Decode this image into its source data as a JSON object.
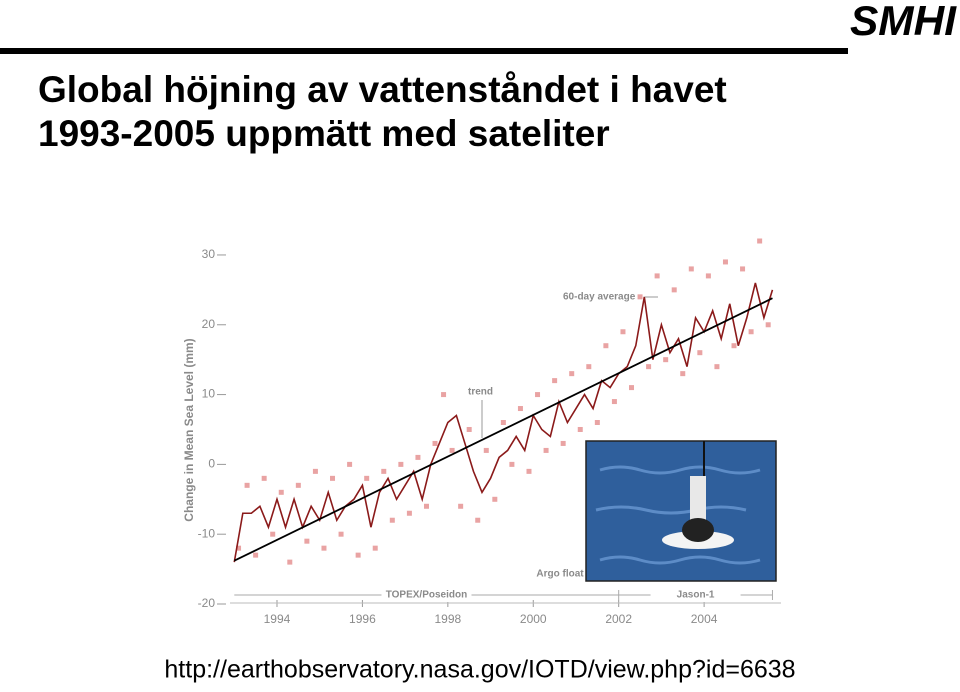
{
  "title": [
    "Global höjning av vattenståndet i havet",
    "1993-2005 uppmätt med sateliter"
  ],
  "logo": "SMHI",
  "source_url": "http://earthobservatory.nasa.gov/IOTD/view.php?id=6638",
  "chart_data": {
    "type": "line",
    "y_label": "Change in Mean Sea Level (mm)",
    "xlim": [
      1992.9,
      2005.8
    ],
    "ylim": [
      -20,
      32
    ],
    "xticks": [
      1994,
      1996,
      1998,
      2000,
      2002,
      2004
    ],
    "yticks": [
      -20,
      -10,
      0,
      10,
      20,
      30
    ],
    "series": [
      {
        "style": "points",
        "color": "#e9a3a3",
        "x": [
          1993.1,
          1993.3,
          1993.5,
          1993.7,
          1993.9,
          1994.1,
          1994.3,
          1994.5,
          1994.7,
          1994.9,
          1995.1,
          1995.3,
          1995.5,
          1995.7,
          1995.9,
          1996.1,
          1996.3,
          1996.5,
          1996.7,
          1996.9,
          1997.1,
          1997.3,
          1997.5,
          1997.7,
          1997.9,
          1998.1,
          1998.3,
          1998.5,
          1998.7,
          1998.9,
          1999.1,
          1999.3,
          1999.5,
          1999.7,
          1999.9,
          2000.1,
          2000.3,
          2000.5,
          2000.7,
          2000.9,
          2001.1,
          2001.3,
          2001.5,
          2001.7,
          2001.9,
          2002.1,
          2002.3,
          2002.5,
          2002.7,
          2002.9,
          2003.1,
          2003.3,
          2003.5,
          2003.7,
          2003.9,
          2004.1,
          2004.3,
          2004.5,
          2004.7,
          2004.9,
          2005.1,
          2005.3,
          2005.5
        ],
        "values": [
          -12,
          -3,
          -13,
          -2,
          -10,
          -4,
          -14,
          -3,
          -11,
          -1,
          -12,
          -2,
          -10,
          0,
          -13,
          -2,
          -12,
          -1,
          -8,
          0,
          -7,
          1,
          -6,
          3,
          10,
          2,
          -6,
          5,
          -8,
          2,
          -5,
          6,
          0,
          8,
          -1,
          10,
          2,
          12,
          3,
          13,
          5,
          14,
          6,
          17,
          9,
          19,
          11,
          24,
          14,
          27,
          15,
          25,
          13,
          28,
          16,
          27,
          14,
          29,
          17,
          28,
          19,
          32,
          20
        ]
      },
      {
        "name": "60-day average",
        "color": "#8b1a1a",
        "x": [
          1993.0,
          1993.2,
          1993.4,
          1993.6,
          1993.8,
          1994.0,
          1994.2,
          1994.4,
          1994.6,
          1994.8,
          1995.0,
          1995.2,
          1995.4,
          1995.6,
          1995.8,
          1996.0,
          1996.2,
          1996.4,
          1996.6,
          1996.8,
          1997.0,
          1997.2,
          1997.4,
          1997.6,
          1997.8,
          1998.0,
          1998.2,
          1998.4,
          1998.6,
          1998.8,
          1999.0,
          1999.2,
          1999.4,
          1999.6,
          1999.8,
          2000.0,
          2000.2,
          2000.4,
          2000.6,
          2000.8,
          2001.0,
          2001.2,
          2001.4,
          2001.6,
          2001.8,
          2002.0,
          2002.2,
          2002.4,
          2002.6,
          2002.8,
          2003.0,
          2003.2,
          2003.4,
          2003.6,
          2003.8,
          2004.0,
          2004.2,
          2004.4,
          2004.6,
          2004.8,
          2005.0,
          2005.2,
          2005.4,
          2005.6
        ],
        "values": [
          -14,
          -7,
          -7,
          -6,
          -9,
          -5,
          -9,
          -5,
          -9,
          -6,
          -8,
          -4,
          -8,
          -6,
          -5,
          -3,
          -9,
          -4,
          -2,
          -5,
          -3,
          -1,
          -5,
          0,
          3,
          6,
          7,
          3,
          -1,
          -4,
          -2,
          1,
          2,
          4,
          2,
          7,
          5,
          4,
          9,
          6,
          8,
          10,
          8,
          12,
          11,
          13,
          14,
          17,
          24,
          15,
          20,
          16,
          18,
          14,
          21,
          19,
          22,
          18,
          23,
          17,
          21,
          26,
          21,
          25
        ]
      },
      {
        "name": "trend",
        "color": "#000000",
        "x": [
          1993.0,
          2005.6
        ],
        "values": [
          -13.8,
          23.8
        ]
      }
    ],
    "annotations": [
      {
        "text": "TOPEX/Poseidon",
        "x": [
          1993.0,
          2002.0
        ]
      },
      {
        "text": "Jason-1",
        "x": [
          2002.0,
          2005.6
        ]
      }
    ],
    "inset_caption": "Argo float"
  }
}
